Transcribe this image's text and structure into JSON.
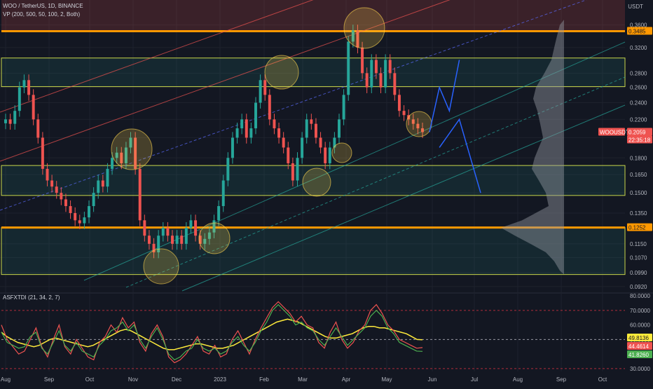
{
  "header": {
    "pair": "WOO / TetherUS, 1D, BINANCE",
    "indicator": "VP (200, 500, 50, 100, 2, Both)",
    "unit": "USDT"
  },
  "oscillator_label": "ASFXTDI (21, 34, 2, 7)",
  "colors": {
    "background": "#131722",
    "axis_text": "#b2b5be",
    "orange_line": "#ff9800",
    "yellow_zone": "#c9d64a",
    "up": "#26a69a",
    "down": "#ef5350",
    "arrow": "#2962ff",
    "volume_profile": "#9598a1"
  },
  "chart_data": [
    {
      "type": "candlestick",
      "symbol": "WOOUSDT",
      "timeframe": "1D",
      "y_scale": "log",
      "ylim": [
        0.089,
        0.41
      ],
      "y_ticks": [
        "0.3600",
        "0.3200",
        "0.2800",
        "0.2600",
        "0.2400",
        "0.2200",
        "0.2000",
        "0.1800",
        "0.1650",
        "0.1500",
        "0.1350",
        "0.1150",
        "0.1070",
        "0.0990",
        "0.0920"
      ],
      "x_ticks": [
        "Aug",
        "Sep",
        "Oct",
        "Nov",
        "Dec",
        "2023",
        "Feb",
        "Mar",
        "Apr",
        "May",
        "Jun",
        "Jul",
        "Aug",
        "Sep",
        "Oct"
      ],
      "price_badges": [
        {
          "label": "0.3485",
          "value": 0.3485,
          "color": "#ff9800"
        },
        {
          "label": "0.1252",
          "value": 0.1252,
          "color": "#ff9800"
        },
        {
          "label": "WOOUSDT",
          "value": 0.2059,
          "color": "#ef5350"
        },
        {
          "label": "0.2059",
          "value": 0.2059,
          "color": "#ef5350"
        },
        {
          "label": "22:35:18",
          "value": 0.2059,
          "color": "#ef5350"
        }
      ],
      "last_price": 0.2059,
      "support_resistance_lines": [
        0.3485,
        0.1252
      ],
      "zones": [
        {
          "low": 0.261,
          "high": 0.303
        },
        {
          "low": 0.148,
          "high": 0.173
        },
        {
          "low": 0.098,
          "high": 0.1252
        }
      ],
      "candles_close": [
        0.22,
        0.215,
        0.23,
        0.26,
        0.27,
        0.25,
        0.22,
        0.2,
        0.17,
        0.16,
        0.155,
        0.15,
        0.145,
        0.14,
        0.135,
        0.13,
        0.128,
        0.132,
        0.14,
        0.15,
        0.16,
        0.155,
        0.17,
        0.18,
        0.185,
        0.175,
        0.19,
        0.2,
        0.17,
        0.13,
        0.12,
        0.115,
        0.11,
        0.12,
        0.125,
        0.12,
        0.115,
        0.12,
        0.115,
        0.125,
        0.13,
        0.12,
        0.115,
        0.118,
        0.122,
        0.13,
        0.14,
        0.16,
        0.18,
        0.2,
        0.21,
        0.22,
        0.2,
        0.21,
        0.24,
        0.27,
        0.25,
        0.22,
        0.21,
        0.2,
        0.19,
        0.175,
        0.16,
        0.18,
        0.2,
        0.22,
        0.215,
        0.2,
        0.19,
        0.175,
        0.19,
        0.2,
        0.22,
        0.25,
        0.33,
        0.35,
        0.32,
        0.28,
        0.26,
        0.3,
        0.28,
        0.26,
        0.3,
        0.28,
        0.25,
        0.23,
        0.225,
        0.22,
        0.215,
        0.21,
        0.2059
      ],
      "projection_path": [
        {
          "date": "2023-05-26",
          "price": 0.2059
        },
        {
          "date": "2023-06-02",
          "price": 0.26
        },
        {
          "date": "2023-06-09",
          "price": 0.23
        },
        {
          "date": "2023-06-16",
          "price": 0.3
        }
      ],
      "projection_path_alt": [
        {
          "date": "2023-06-02",
          "price": 0.19
        },
        {
          "date": "2023-06-16",
          "price": 0.22
        },
        {
          "date": "2023-07-01",
          "price": 0.15
        }
      ]
    },
    {
      "type": "line",
      "title": "ASFXTDI (21, 34, 2, 7)",
      "ylim": [
        28,
        82
      ],
      "y_ticks": [
        "80.0000",
        "70.0000",
        "60.0000",
        "50.0000",
        "40.0000",
        "30.0000"
      ],
      "reference_lines": [
        70,
        50,
        30
      ],
      "series": [
        {
          "values": [
            55,
            52,
            50,
            48,
            47,
            46,
            45,
            46,
            48,
            50,
            51,
            50,
            49,
            48,
            47,
            46,
            45,
            46,
            48,
            50,
            52,
            54,
            56,
            57,
            56,
            54,
            52,
            50,
            48,
            46,
            44,
            43,
            43,
            44,
            45,
            46,
            47,
            47,
            46,
            45,
            44,
            44,
            45,
            46,
            48,
            50,
            52,
            54,
            56,
            58,
            60,
            62,
            63,
            64,
            63,
            62,
            60,
            58,
            56,
            54,
            52,
            51,
            51,
            52,
            53,
            54,
            56,
            58,
            59,
            59,
            58,
            58,
            57,
            56,
            55,
            54,
            52,
            50,
            49.8136
          ]
        },
        {
          "values": [
            60,
            50,
            45,
            40,
            42,
            50,
            58,
            45,
            38,
            50,
            60,
            45,
            40,
            50,
            44,
            38,
            36,
            48,
            52,
            60,
            55,
            65,
            58,
            62,
            48,
            42,
            54,
            60,
            52,
            38,
            34,
            36,
            40,
            46,
            52,
            42,
            40,
            46,
            38,
            40,
            50,
            56,
            48,
            40,
            50,
            58,
            65,
            72,
            76,
            72,
            68,
            62,
            66,
            60,
            58,
            48,
            44,
            55,
            62,
            50,
            44,
            48,
            56,
            60,
            70,
            74,
            68,
            60,
            56,
            50,
            48,
            46,
            44,
            44.4614
          ]
        },
        {
          "values": [
            55,
            48,
            46,
            44,
            45,
            52,
            55,
            44,
            40,
            48,
            56,
            46,
            42,
            48,
            42,
            40,
            38,
            46,
            50,
            56,
            58,
            62,
            56,
            60,
            50,
            44,
            52,
            58,
            50,
            40,
            36,
            38,
            42,
            44,
            50,
            44,
            42,
            44,
            40,
            42,
            48,
            52,
            46,
            42,
            48,
            56,
            62,
            70,
            74,
            70,
            66,
            60,
            62,
            58,
            56,
            50,
            46,
            52,
            58,
            52,
            46,
            50,
            54,
            58,
            66,
            70,
            66,
            58,
            54,
            48,
            46,
            44,
            42,
            41.826
          ]
        }
      ],
      "value_badges": [
        {
          "label": "49.8136",
          "value": 49.8136,
          "color": "#ffeb3b"
        },
        {
          "label": "44.4614",
          "value": 44.4614,
          "color": "#ef5350"
        },
        {
          "label": "41.8260",
          "value": 41.826,
          "color": "#4caf50"
        }
      ]
    }
  ]
}
